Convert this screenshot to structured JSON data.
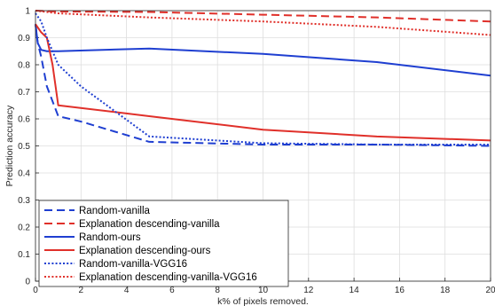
{
  "chart_data": {
    "type": "line",
    "title": "",
    "xlabel": "k% of pixels removed.",
    "ylabel": "Prediction accuracy",
    "xlim": [
      0,
      20
    ],
    "ylim": [
      0,
      1
    ],
    "xticks": [
      0,
      2,
      4,
      6,
      8,
      10,
      12,
      14,
      16,
      18,
      20
    ],
    "yticks": [
      0,
      0.1,
      0.2,
      0.3,
      0.4,
      0.5,
      0.6,
      0.7,
      0.8,
      0.9,
      1
    ],
    "grid": true,
    "legend_position": "bottom-left",
    "series": [
      {
        "name": "Random-vanilla",
        "color": "#1f3fd1",
        "style": "dashed",
        "x": [
          0,
          0.1,
          0.25,
          0.5,
          1,
          2,
          5,
          10,
          15,
          20
        ],
        "y": [
          0.95,
          0.88,
          0.83,
          0.72,
          0.61,
          0.59,
          0.515,
          0.505,
          0.505,
          0.5
        ]
      },
      {
        "name": "Explanation descending-vanilla",
        "color": "#e0302a",
        "style": "dashed",
        "x": [
          0,
          0.5,
          1,
          5,
          10,
          15,
          20
        ],
        "y": [
          1.0,
          0.998,
          0.997,
          0.995,
          0.985,
          0.975,
          0.96
        ]
      },
      {
        "name": "Random-ours",
        "color": "#1f3fd1",
        "style": "solid",
        "x": [
          0,
          0.1,
          0.25,
          0.5,
          1,
          5,
          10,
          15,
          20
        ],
        "y": [
          0.95,
          0.88,
          0.855,
          0.85,
          0.85,
          0.86,
          0.84,
          0.81,
          0.76
        ]
      },
      {
        "name": "Explanation descending-ours",
        "color": "#e0302a",
        "style": "solid",
        "x": [
          0,
          0.25,
          0.5,
          0.75,
          1,
          5,
          10,
          15,
          20
        ],
        "y": [
          0.95,
          0.92,
          0.9,
          0.8,
          0.65,
          0.61,
          0.56,
          0.535,
          0.52
        ]
      },
      {
        "name": "Random-vanilla-VGG16",
        "color": "#1f3fd1",
        "style": "dotted",
        "x": [
          0,
          0.25,
          0.5,
          1,
          2,
          5,
          10,
          15,
          20
        ],
        "y": [
          0.99,
          0.96,
          0.9,
          0.8,
          0.72,
          0.535,
          0.51,
          0.505,
          0.505
        ]
      },
      {
        "name": "Explanation descending-vanilla-VGG16",
        "color": "#e0302a",
        "style": "dotted",
        "x": [
          0,
          0.5,
          1,
          5,
          10,
          15,
          20
        ],
        "y": [
          1.0,
          0.995,
          0.99,
          0.975,
          0.96,
          0.94,
          0.91
        ]
      }
    ]
  }
}
